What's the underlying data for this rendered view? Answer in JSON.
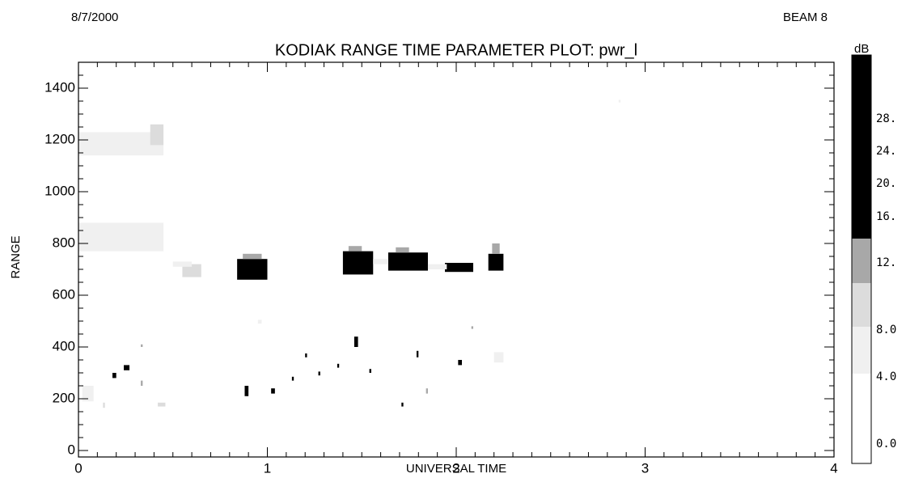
{
  "chart_data": {
    "type": "heatmap",
    "title": "KODIAK RANGE TIME PARAMETER PLOT: pwr_l",
    "date": "8/7/2000",
    "beam": "BEAM  8",
    "xlabel": "UNIVERSAL TIME",
    "ylabel": "RANGE",
    "xlim": [
      0,
      4
    ],
    "xticks": [
      0,
      1,
      2,
      3,
      4
    ],
    "ylim": [
      -25,
      1500
    ],
    "yticks": [
      0,
      200,
      400,
      600,
      800,
      1000,
      1200,
      1400
    ],
    "colorbar": {
      "label": "dB",
      "ticks": [
        {
          "value": 0,
          "label": "0.0"
        },
        {
          "value": 4,
          "label": "4.0"
        },
        {
          "value": 8,
          "label": "8.0"
        },
        {
          "value": 12,
          "label": "12."
        },
        {
          "value": 16,
          "label": "16."
        },
        {
          "value": 20,
          "label": "20."
        },
        {
          "value": 24,
          "label": "24."
        },
        {
          "value": 28,
          "label": "28."
        }
      ],
      "colors": [
        "#ffffff",
        "#f0f0f0",
        "#dcdcdc",
        "#a8a8a8",
        "#000000",
        "#000000",
        "#000000",
        "#000000"
      ]
    },
    "cells": [
      [
        0.84,
        1.0,
        660,
        740,
        24
      ],
      [
        0.87,
        0.97,
        740,
        760,
        14
      ],
      [
        1.4,
        1.56,
        680,
        770,
        24
      ],
      [
        1.43,
        1.5,
        770,
        790,
        14
      ],
      [
        1.64,
        1.85,
        695,
        765,
        24
      ],
      [
        1.68,
        1.75,
        765,
        785,
        14
      ],
      [
        1.94,
        2.09,
        690,
        725,
        24
      ],
      [
        2.17,
        2.25,
        695,
        760,
        24
      ],
      [
        2.19,
        2.23,
        760,
        800,
        14
      ],
      [
        0.55,
        0.65,
        670,
        720,
        10
      ],
      [
        0.5,
        0.6,
        710,
        730,
        6
      ],
      [
        0.0,
        0.45,
        770,
        880,
        5
      ],
      [
        0.0,
        0.45,
        1140,
        1230,
        6
      ],
      [
        0.38,
        0.45,
        1180,
        1260,
        9
      ],
      [
        1.85,
        1.95,
        700,
        720,
        6
      ],
      [
        1.56,
        1.64,
        720,
        740,
        5
      ],
      [
        0.18,
        0.2,
        280,
        300,
        20
      ],
      [
        0.24,
        0.27,
        310,
        330,
        22
      ],
      [
        0.88,
        0.9,
        210,
        250,
        22
      ],
      [
        1.02,
        1.04,
        220,
        240,
        22
      ],
      [
        1.13,
        1.14,
        270,
        285,
        20
      ],
      [
        1.2,
        1.21,
        360,
        375,
        18
      ],
      [
        1.27,
        1.28,
        290,
        305,
        18
      ],
      [
        1.37,
        1.38,
        320,
        335,
        18
      ],
      [
        1.46,
        1.48,
        400,
        440,
        18
      ],
      [
        1.54,
        1.55,
        300,
        315,
        18
      ],
      [
        1.71,
        1.72,
        170,
        185,
        18
      ],
      [
        1.79,
        1.8,
        360,
        385,
        18
      ],
      [
        1.84,
        1.85,
        220,
        240,
        14
      ],
      [
        2.01,
        2.03,
        330,
        350,
        20
      ],
      [
        2.08,
        2.09,
        470,
        480,
        14
      ],
      [
        0.33,
        0.34,
        400,
        410,
        14
      ],
      [
        0.33,
        0.34,
        250,
        270,
        14
      ],
      [
        0.02,
        0.08,
        190,
        250,
        6
      ],
      [
        0.42,
        0.46,
        170,
        185,
        9
      ],
      [
        0.13,
        0.14,
        165,
        185,
        9
      ],
      [
        2.86,
        2.87,
        1345,
        1355,
        6
      ],
      [
        2.2,
        2.25,
        340,
        380,
        6
      ],
      [
        0.95,
        0.97,
        490,
        505,
        6
      ]
    ]
  }
}
